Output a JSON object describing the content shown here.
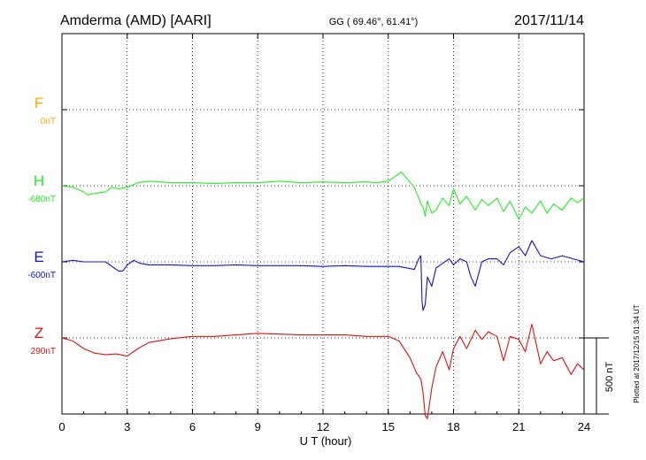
{
  "header": {
    "station": "Amderma (AMD)  [AARI]",
    "coords": "GG ( 69.46°,  61.41°)",
    "date": "2017/11/14"
  },
  "side_note": "Plotted at 2017/12/15 01:34 UT",
  "colors": {
    "F": "#ffaa00",
    "H": "#22ee22",
    "E": "#1111cc",
    "Z": "#dd1111"
  },
  "chart_data": {
    "type": "line",
    "title": "Amderma (AMD)  [AARI]",
    "xlabel": "U T (hour)",
    "xlim": [
      0,
      24
    ],
    "xticks": [
      "0",
      "3",
      "6",
      "9",
      "12",
      "15",
      "18",
      "21",
      "24"
    ],
    "scale_bar": {
      "label": "500 nT",
      "value_nT": 500
    },
    "grid": true,
    "series": [
      {
        "name": "F",
        "baseline_label": "0nT",
        "color": "#ffaa00",
        "x": [],
        "y": []
      },
      {
        "name": "H",
        "baseline_label": "-680nT",
        "color": "#22ee22",
        "x": [
          0,
          0.5,
          1,
          1.2,
          1.5,
          2,
          2.3,
          2.6,
          3,
          3.5,
          4,
          5,
          6,
          7,
          8,
          9,
          10,
          11,
          12,
          13,
          14,
          14.5,
          15,
          15.3,
          15.6,
          15.9,
          16.2,
          16.4,
          16.5,
          16.6,
          16.7,
          16.8,
          17.0,
          17.2,
          17.5,
          17.8,
          18.0,
          18.3,
          18.6,
          19.0,
          19.3,
          19.6,
          20.0,
          20.3,
          20.6,
          21.0,
          21.3,
          21.6,
          22.0,
          22.3,
          22.6,
          23.0,
          23.4,
          23.7,
          24
        ],
        "y": [
          -680,
          -690,
          -720,
          -740,
          -730,
          -720,
          -690,
          -700,
          -690,
          -660,
          -650,
          -660,
          -660,
          -665,
          -660,
          -660,
          -650,
          -660,
          -655,
          -660,
          -655,
          -660,
          -650,
          -620,
          -590,
          -640,
          -690,
          -760,
          -800,
          -820,
          -880,
          -780,
          -860,
          -840,
          -760,
          -810,
          -700,
          -800,
          -750,
          -840,
          -770,
          -810,
          -760,
          -850,
          -780,
          -900,
          -820,
          -860,
          -780,
          -860,
          -800,
          -840,
          -760,
          -790,
          -760
        ]
      },
      {
        "name": "E",
        "baseline_label": "-600nT",
        "color": "#1111cc",
        "x": [
          0,
          0.5,
          1,
          1.5,
          2,
          2.3,
          2.6,
          2.8,
          3,
          3.3,
          3.6,
          4,
          5,
          6,
          7,
          8,
          9,
          10,
          11,
          12,
          13,
          14,
          15,
          15.5,
          16.2,
          16.4,
          16.5,
          16.55,
          16.6,
          16.7,
          16.8,
          17.0,
          17.2,
          17.5,
          17.8,
          18.0,
          18.3,
          18.6,
          18.8,
          19.0,
          19.3,
          19.6,
          20.0,
          20.3,
          20.6,
          21.0,
          21.3,
          21.6,
          22.0,
          22.5,
          23.0,
          23.5,
          24
        ],
        "y": [
          -600,
          -590,
          -600,
          -600,
          -600,
          -630,
          -660,
          -660,
          -620,
          -590,
          -610,
          -620,
          -620,
          -625,
          -625,
          -620,
          -625,
          -625,
          -625,
          -630,
          -625,
          -630,
          -630,
          -630,
          -650,
          -580,
          -560,
          -860,
          -920,
          -880,
          -700,
          -760,
          -640,
          -610,
          -580,
          -620,
          -580,
          -600,
          -700,
          -760,
          -600,
          -580,
          -580,
          -620,
          -540,
          -500,
          -560,
          -460,
          -560,
          -580,
          -560,
          -580,
          -600
        ]
      },
      {
        "name": "Z",
        "baseline_label": "290nT",
        "color": "#dd1111",
        "x": [
          0,
          0.5,
          1,
          1.5,
          2,
          2.5,
          3,
          3.5,
          4,
          5,
          6,
          7,
          8,
          9,
          10,
          11,
          12,
          13,
          14,
          15,
          15.5,
          16,
          16.3,
          16.5,
          16.6,
          16.7,
          16.8,
          17.0,
          17.2,
          17.5,
          17.8,
          18.0,
          18.3,
          18.6,
          19.0,
          19.3,
          19.6,
          20.0,
          20.3,
          20.6,
          21.0,
          21.3,
          21.6,
          22.0,
          22.3,
          22.6,
          23.0,
          23.4,
          23.7,
          24
        ],
        "y": [
          290,
          270,
          220,
          190,
          180,
          185,
          170,
          220,
          260,
          285,
          300,
          300,
          310,
          320,
          315,
          310,
          310,
          310,
          300,
          300,
          270,
          160,
          60,
          20,
          -70,
          -220,
          -240,
          -40,
          100,
          200,
          80,
          220,
          300,
          220,
          340,
          280,
          330,
          300,
          140,
          300,
          280,
          200,
          380,
          120,
          200,
          140,
          160,
          50,
          120,
          80
        ]
      }
    ]
  }
}
